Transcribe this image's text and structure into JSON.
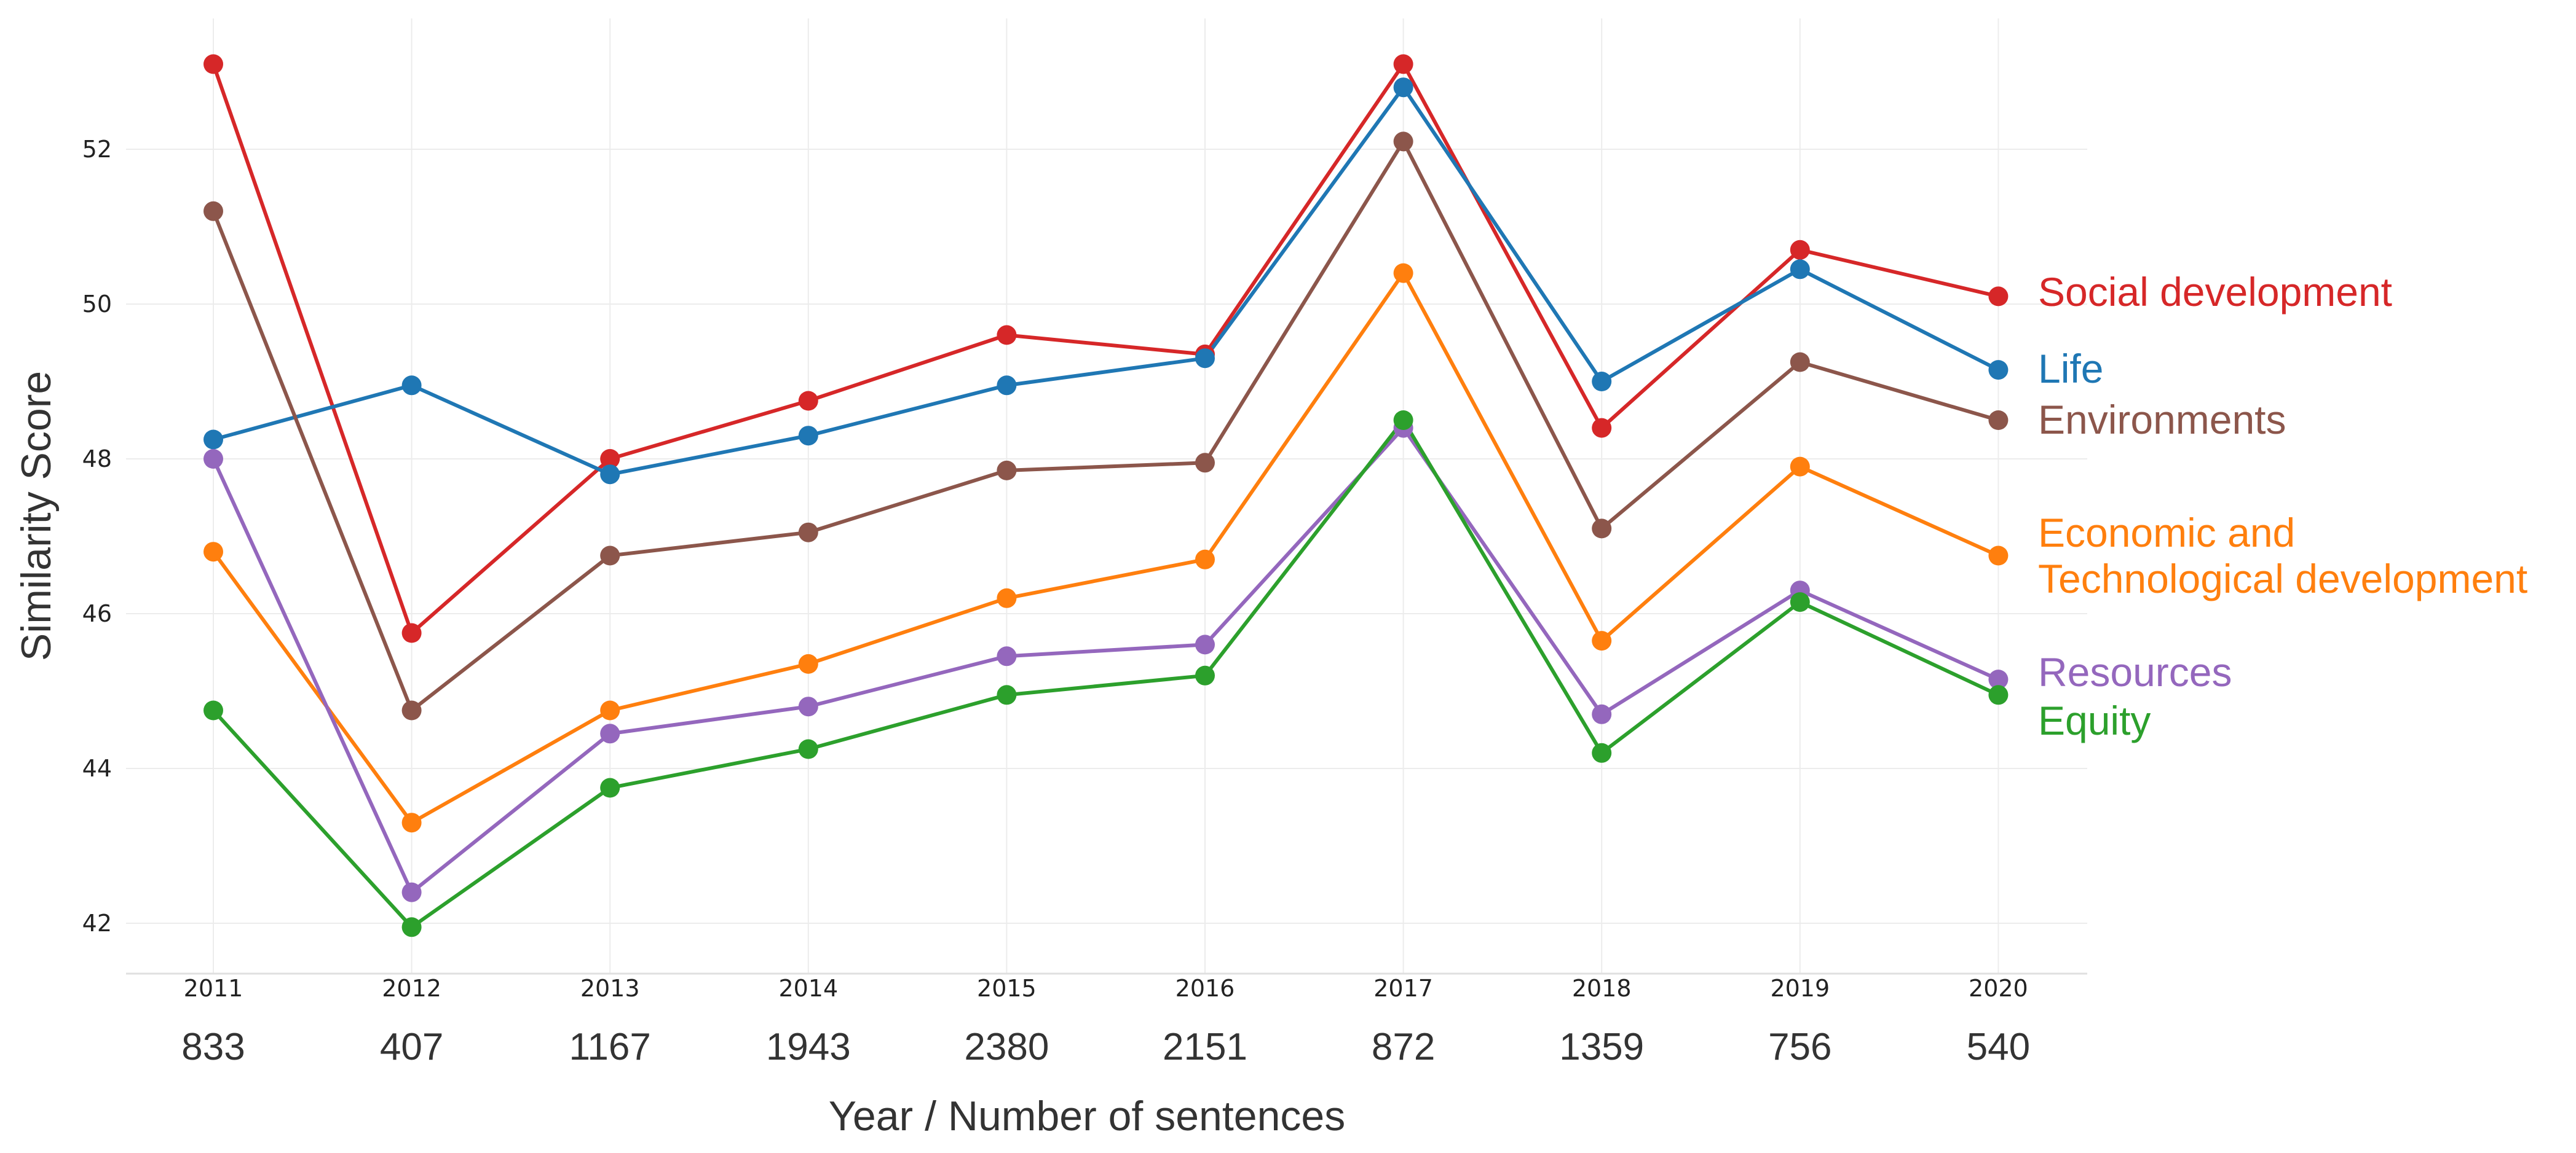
{
  "chart_data": {
    "type": "line",
    "xlabel": "Year / Number of sentences",
    "ylabel": "Similarity Score",
    "ylim": [
      41.4,
      53.7
    ],
    "yticks": [
      42,
      44,
      46,
      48,
      50,
      52
    ],
    "grid": true,
    "legend_placement": "right, inline labels at line ends",
    "categories": [
      "2011",
      "2012",
      "2013",
      "2014",
      "2015",
      "2016",
      "2017",
      "2018",
      "2019",
      "2020"
    ],
    "sentence_counts": [
      "833",
      "407",
      "1167",
      "1943",
      "2380",
      "2151",
      "872",
      "1359",
      "756",
      "540"
    ],
    "series": [
      {
        "name": "Social development",
        "label_lines": [
          "Social development"
        ],
        "color": "#d62728",
        "values": [
          53.1,
          45.75,
          48.0,
          48.75,
          49.6,
          49.35,
          53.1,
          48.4,
          50.7,
          50.1
        ]
      },
      {
        "name": "Life",
        "label_lines": [
          "Life"
        ],
        "color": "#1f77b4",
        "values": [
          48.25,
          48.95,
          47.8,
          48.3,
          48.95,
          49.3,
          52.8,
          49.0,
          50.45,
          49.15
        ]
      },
      {
        "name": "Environments",
        "label_lines": [
          "Environments"
        ],
        "color": "#8c564b",
        "values": [
          51.2,
          44.75,
          46.75,
          47.05,
          47.85,
          47.95,
          52.1,
          47.1,
          49.25,
          48.5
        ]
      },
      {
        "name": "Economic and Technological development",
        "label_lines": [
          "Economic and",
          "Technological development"
        ],
        "color": "#ff7f0e",
        "values": [
          46.8,
          43.3,
          44.75,
          45.35,
          46.2,
          46.7,
          50.4,
          45.65,
          47.9,
          46.75
        ]
      },
      {
        "name": "Resources",
        "label_lines": [
          "Resources"
        ],
        "color": "#9467bd",
        "values": [
          48.0,
          42.4,
          44.45,
          44.8,
          45.45,
          45.6,
          48.4,
          44.7,
          46.3,
          45.15
        ]
      },
      {
        "name": "Equity",
        "label_lines": [
          "Equity"
        ],
        "color": "#2ca02c",
        "values": [
          44.75,
          41.95,
          43.75,
          44.25,
          44.95,
          45.2,
          48.5,
          44.2,
          46.15,
          44.95
        ]
      }
    ]
  }
}
